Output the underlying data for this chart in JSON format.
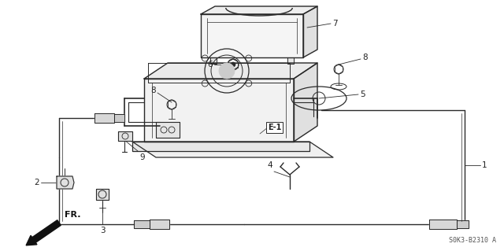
{
  "bg_color": "#ffffff",
  "lc": "#2a2a2a",
  "tc": "#222222",
  "diagram_code": "S0K3-B2310 A",
  "figsize": [
    6.4,
    3.19
  ],
  "dpi": 100
}
